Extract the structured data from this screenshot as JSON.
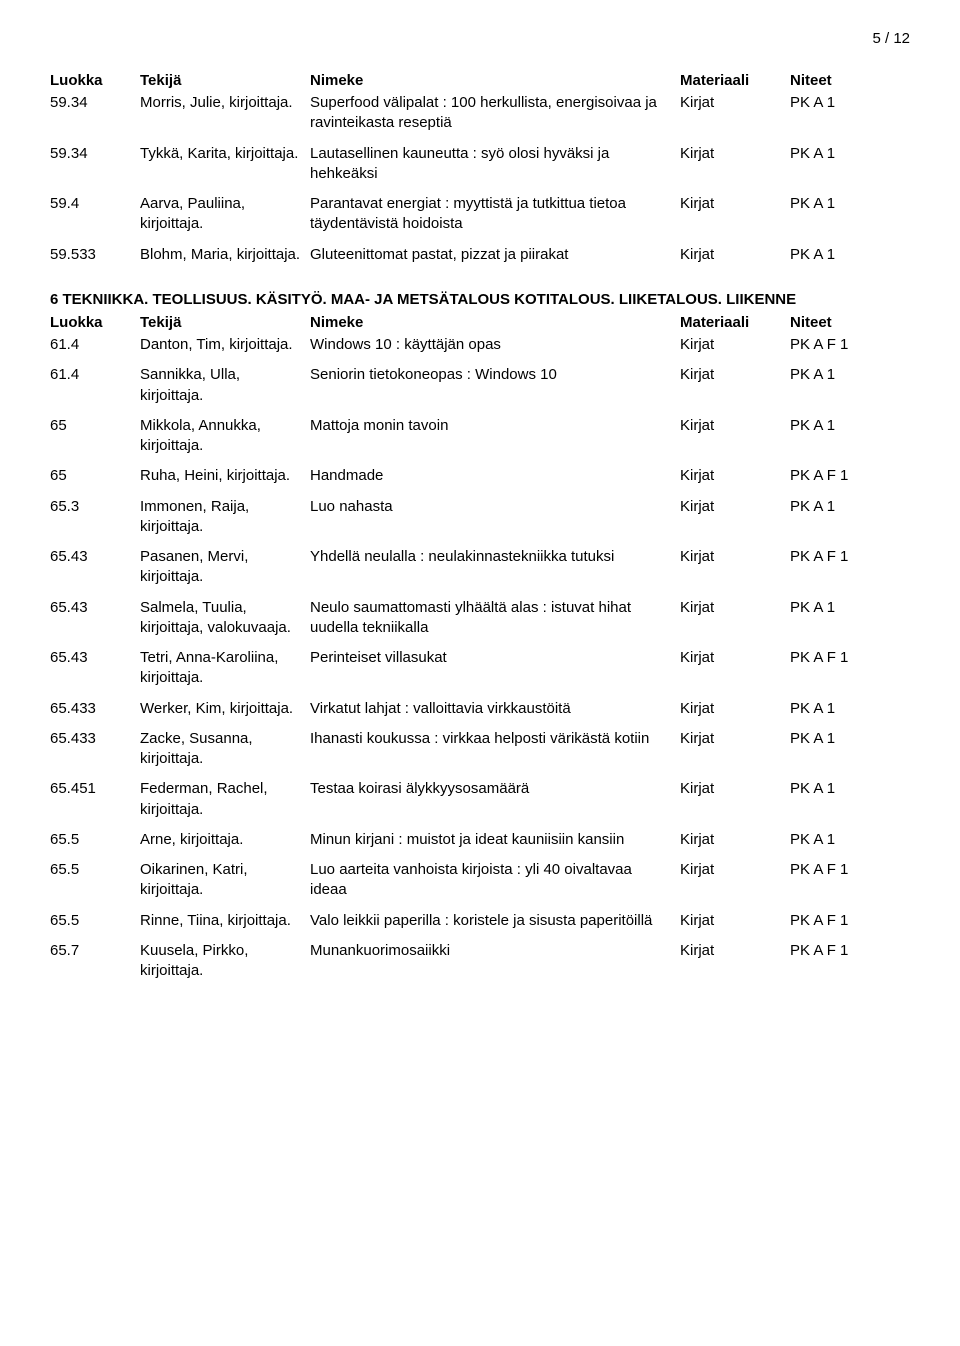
{
  "page_number": "5 / 12",
  "headers": {
    "luokka": "Luokka",
    "tekija": "Tekijä",
    "nimeke": "Nimeke",
    "materiaali": "Materiaali",
    "niteet": "Niteet"
  },
  "section1_rows": [
    {
      "luokka": "59.34",
      "tekija": "Morris, Julie, kirjoittaja.",
      "nimeke": "Superfood välipalat : 100 herkullista, energisoivaa ja ravinteikasta reseptiä",
      "materiaali": "Kirjat",
      "niteet": "PK A 1"
    },
    {
      "luokka": "59.34",
      "tekija": "Tykkä, Karita, kirjoittaja.",
      "nimeke": "Lautasellinen kauneutta : syö olosi hyväksi ja hehkeäksi",
      "materiaali": "Kirjat",
      "niteet": "PK A 1"
    },
    {
      "luokka": "59.4",
      "tekija": "Aarva, Pauliina, kirjoittaja.",
      "nimeke": "Parantavat energiat : myyttistä ja tutkittua tietoa täydentävistä hoidoista",
      "materiaali": "Kirjat",
      "niteet": "PK A 1"
    },
    {
      "luokka": "59.533",
      "tekija": "Blohm, Maria, kirjoittaja.",
      "nimeke": "Gluteenittomat pastat, pizzat ja piirakat",
      "materiaali": "Kirjat",
      "niteet": "PK A 1"
    }
  ],
  "section2_title": "6 TEKNIIKKA. TEOLLISUUS. KÄSITYÖ. MAA- JA METSÄTALOUS KOTITALOUS. LIIKETALOUS. LIIKENNE",
  "section2_rows": [
    {
      "luokka": "61.4",
      "tekija": "Danton, Tim, kirjoittaja.",
      "nimeke": "Windows 10 : käyttäjän opas",
      "materiaali": "Kirjat",
      "niteet": "PK A F 1"
    },
    {
      "luokka": "61.4",
      "tekija": "Sannikka, Ulla, kirjoittaja.",
      "nimeke": "Seniorin tietokoneopas : Windows 10",
      "materiaali": "Kirjat",
      "niteet": "PK A 1"
    },
    {
      "luokka": "65",
      "tekija": "Mikkola, Annukka, kirjoittaja.",
      "nimeke": "Mattoja monin tavoin",
      "materiaali": "Kirjat",
      "niteet": "PK A 1"
    },
    {
      "luokka": "65",
      "tekija": "Ruha, Heini, kirjoittaja.",
      "nimeke": "Handmade",
      "materiaali": "Kirjat",
      "niteet": "PK A F 1"
    },
    {
      "luokka": "65.3",
      "tekija": "Immonen, Raija, kirjoittaja.",
      "nimeke": "Luo nahasta",
      "materiaali": "Kirjat",
      "niteet": "PK A 1"
    },
    {
      "luokka": "65.43",
      "tekija": "Pasanen, Mervi, kirjoittaja.",
      "nimeke": "Yhdellä neulalla : neulakinnastekniikka tutuksi",
      "materiaali": "Kirjat",
      "niteet": "PK A F 1"
    },
    {
      "luokka": "65.43",
      "tekija": "Salmela, Tuulia, kirjoittaja, valokuvaaja.",
      "nimeke": "Neulo saumattomasti ylhäältä alas : istuvat hihat uudella tekniikalla",
      "materiaali": "Kirjat",
      "niteet": "PK A 1"
    },
    {
      "luokka": "65.43",
      "tekija": "Tetri, Anna-Karoliina, kirjoittaja.",
      "nimeke": "Perinteiset villasukat",
      "materiaali": "Kirjat",
      "niteet": "PK A F 1"
    },
    {
      "luokka": "65.433",
      "tekija": "Werker, Kim, kirjoittaja.",
      "nimeke": "Virkatut lahjat : valloittavia virkkaustöitä",
      "materiaali": "Kirjat",
      "niteet": "PK A 1"
    },
    {
      "luokka": "65.433",
      "tekija": "Zacke, Susanna, kirjoittaja.",
      "nimeke": "Ihanasti koukussa : virkkaa helposti värikästä kotiin",
      "materiaali": "Kirjat",
      "niteet": "PK A 1"
    },
    {
      "luokka": "65.451",
      "tekija": "Federman, Rachel, kirjoittaja.",
      "nimeke": "Testaa koirasi älykkyysosamäärä",
      "materiaali": "Kirjat",
      "niteet": "PK A 1"
    },
    {
      "luokka": "65.5",
      "tekija": "Arne, kirjoittaja.",
      "nimeke": "Minun kirjani : muistot ja ideat kauniisiin kansiin",
      "materiaali": "Kirjat",
      "niteet": "PK A 1"
    },
    {
      "luokka": "65.5",
      "tekija": "Oikarinen, Katri, kirjoittaja.",
      "nimeke": "Luo aarteita vanhoista kirjoista : yli 40 oivaltavaa ideaa",
      "materiaali": "Kirjat",
      "niteet": "PK A F 1"
    },
    {
      "luokka": "65.5",
      "tekija": "Rinne, Tiina, kirjoittaja.",
      "nimeke": "Valo leikkii paperilla : koristele ja sisusta paperitöillä",
      "materiaali": "Kirjat",
      "niteet": "PK A F 1"
    },
    {
      "luokka": "65.7",
      "tekija": "Kuusela, Pirkko, kirjoittaja.",
      "nimeke": "Munankuorimosaiikki",
      "materiaali": "Kirjat",
      "niteet": "PK A F 1"
    }
  ]
}
